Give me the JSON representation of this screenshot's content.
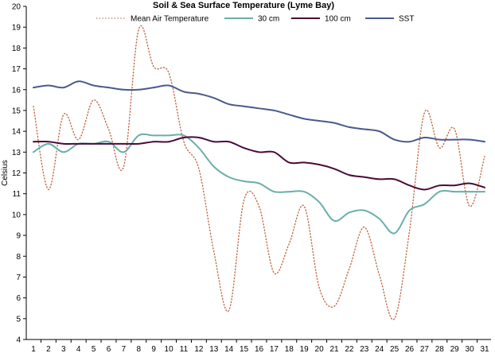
{
  "chart_data": {
    "type": "line",
    "title": "Soil & Sea Surface Temperature (Lyme Bay)",
    "xlabel": "",
    "ylabel": "Celsius",
    "xlim": [
      1,
      31
    ],
    "ylim": [
      4,
      20
    ],
    "yticks": [
      4,
      5,
      6,
      7,
      8,
      9,
      10,
      11,
      12,
      13,
      14,
      15,
      16,
      17,
      18,
      19,
      20
    ],
    "categories": [
      "1",
      "2",
      "3",
      "4",
      "5",
      "6",
      "7",
      "8",
      "9",
      "10",
      "11",
      "12",
      "13",
      "14",
      "15",
      "16",
      "17",
      "18",
      "19",
      "20",
      "21",
      "22",
      "23",
      "24",
      "25",
      "26",
      "27",
      "28",
      "29",
      "30",
      "31"
    ],
    "grid": false,
    "legend_position": "top",
    "series": [
      {
        "name": "Mean Air Temperature",
        "color": "#c0603a",
        "style": "dotted",
        "values": [
          15.2,
          11.2,
          14.8,
          13.6,
          15.5,
          14.1,
          12.3,
          18.9,
          17.1,
          16.8,
          13.5,
          12.2,
          8.2,
          5.4,
          10.7,
          10.4,
          7.2,
          8.6,
          10.4,
          6.5,
          5.6,
          7.4,
          9.4,
          7.1,
          5.0,
          9.2,
          14.9,
          13.2,
          14.1,
          10.4,
          12.8
        ]
      },
      {
        "name": "30 cm",
        "color": "#6aaeaa",
        "style": "solid",
        "values": [
          13.0,
          13.4,
          13.0,
          13.4,
          13.4,
          13.5,
          13.0,
          13.8,
          13.8,
          13.8,
          13.8,
          13.2,
          12.3,
          11.8,
          11.6,
          11.5,
          11.1,
          11.1,
          11.1,
          10.6,
          9.7,
          10.1,
          10.2,
          9.8,
          9.1,
          10.2,
          10.5,
          11.1,
          11.1,
          11.1,
          11.1
        ]
      },
      {
        "name": "100 cm",
        "color": "#4a0a3a",
        "style": "solid",
        "values": [
          13.5,
          13.5,
          13.4,
          13.4,
          13.4,
          13.4,
          13.4,
          13.4,
          13.5,
          13.5,
          13.7,
          13.7,
          13.5,
          13.5,
          13.2,
          13.0,
          13.0,
          12.5,
          12.5,
          12.4,
          12.2,
          11.9,
          11.8,
          11.7,
          11.7,
          11.4,
          11.2,
          11.4,
          11.4,
          11.5,
          11.3
        ]
      },
      {
        "name": "SST",
        "color": "#4a5a8a",
        "style": "solid",
        "values": [
          16.1,
          16.2,
          16.1,
          16.4,
          16.2,
          16.1,
          16.0,
          16.0,
          16.1,
          16.2,
          15.9,
          15.8,
          15.6,
          15.3,
          15.2,
          15.1,
          15.0,
          14.8,
          14.6,
          14.5,
          14.4,
          14.2,
          14.1,
          14.0,
          13.6,
          13.5,
          13.7,
          13.6,
          13.6,
          13.6,
          13.5
        ]
      }
    ]
  }
}
